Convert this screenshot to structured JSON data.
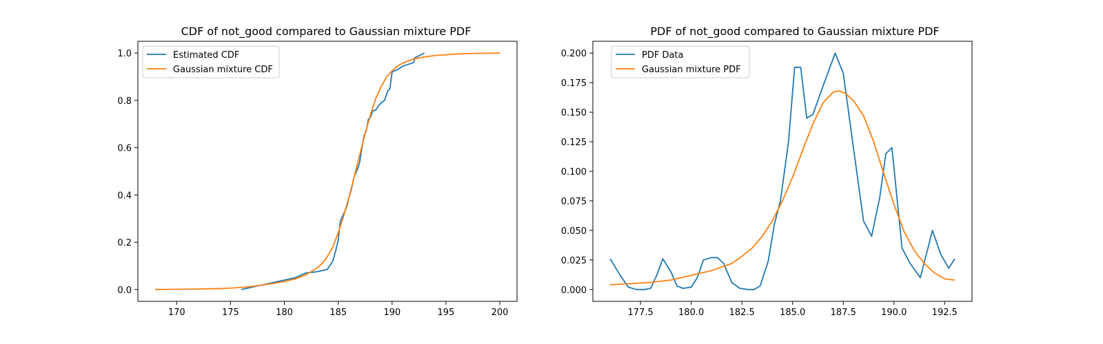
{
  "colors": {
    "series_blue": "#1f77b4",
    "series_orange": "#ff7f0e",
    "axis": "#000000",
    "legend_border": "#cccccc",
    "background": "#ffffff"
  },
  "chart_data": [
    {
      "type": "line",
      "title": "CDF of not_good compared to Gaussian mixture PDF",
      "xlabel": "",
      "ylabel": "",
      "xlim": [
        166.4,
        201.6
      ],
      "ylim": [
        -0.05,
        1.05
      ],
      "xticks": [
        170,
        175,
        180,
        185,
        190,
        195,
        200
      ],
      "xtick_labels": [
        "170",
        "175",
        "180",
        "185",
        "190",
        "195",
        "200"
      ],
      "yticks": [
        0.0,
        0.2,
        0.4,
        0.6,
        0.8,
        1.0
      ],
      "ytick_labels": [
        "0.0",
        "0.2",
        "0.4",
        "0.6",
        "0.8",
        "1.0"
      ],
      "grid": false,
      "legend_position": "upper left",
      "series": [
        {
          "name": "Estimated CDF",
          "color": "#1f77b4",
          "x": [
            176.0,
            177.0,
            178.0,
            179.0,
            180.0,
            181.0,
            181.5,
            182.0,
            183.0,
            184.0,
            184.2,
            184.5,
            184.8,
            185.0,
            185.2,
            185.5,
            185.8,
            186.0,
            186.2,
            186.5,
            186.8,
            187.0,
            187.2,
            187.4,
            187.6,
            187.8,
            188.0,
            188.2,
            188.5,
            188.8,
            189.0,
            189.3,
            189.6,
            189.8,
            190.0,
            190.5,
            191.0,
            192.0,
            192.1,
            193.0
          ],
          "y": [
            0.0,
            0.01,
            0.02,
            0.03,
            0.04,
            0.05,
            0.06,
            0.07,
            0.075,
            0.085,
            0.1,
            0.12,
            0.17,
            0.21,
            0.29,
            0.32,
            0.35,
            0.39,
            0.42,
            0.48,
            0.51,
            0.54,
            0.6,
            0.65,
            0.67,
            0.72,
            0.73,
            0.755,
            0.76,
            0.78,
            0.79,
            0.8,
            0.84,
            0.85,
            0.92,
            0.93,
            0.945,
            0.96,
            0.98,
            1.0
          ]
        },
        {
          "name": "Gaussian mixture CDF",
          "color": "#ff7f0e",
          "x": [
            168.0,
            170.0,
            172.0,
            174.0,
            175.0,
            176.0,
            177.0,
            178.0,
            179.0,
            180.0,
            181.0,
            182.0,
            183.0,
            183.5,
            184.0,
            184.5,
            185.0,
            185.5,
            186.0,
            186.5,
            187.0,
            187.5,
            188.0,
            188.5,
            189.0,
            189.5,
            190.0,
            190.5,
            191.0,
            192.0,
            193.0,
            194.0,
            195.0,
            196.0,
            197.0,
            198.0,
            200.0
          ],
          "y": [
            0.0,
            0.001,
            0.002,
            0.004,
            0.006,
            0.009,
            0.013,
            0.019,
            0.026,
            0.034,
            0.045,
            0.062,
            0.09,
            0.11,
            0.14,
            0.18,
            0.24,
            0.31,
            0.39,
            0.48,
            0.57,
            0.66,
            0.74,
            0.81,
            0.86,
            0.9,
            0.925,
            0.945,
            0.958,
            0.975,
            0.984,
            0.99,
            0.993,
            0.996,
            0.998,
            0.999,
            1.0
          ]
        }
      ]
    },
    {
      "type": "line",
      "title": "PDF of not_good compared to Gaussian mixture PDF",
      "xlabel": "",
      "ylabel": "",
      "xlim": [
        175.15,
        193.85
      ],
      "ylim": [
        -0.01,
        0.21
      ],
      "xticks": [
        177.5,
        180.0,
        182.5,
        185.0,
        187.5,
        190.0,
        192.5
      ],
      "xtick_labels": [
        "177.5",
        "180.0",
        "182.5",
        "185.0",
        "187.5",
        "190.0",
        "192.5"
      ],
      "yticks": [
        0.0,
        0.025,
        0.05,
        0.075,
        0.1,
        0.125,
        0.15,
        0.175,
        0.2
      ],
      "ytick_labels": [
        "0.000",
        "0.025",
        "0.050",
        "0.075",
        "0.100",
        "0.125",
        "0.150",
        "0.175",
        "0.200"
      ],
      "grid": false,
      "legend_position": "upper left",
      "series": [
        {
          "name": "PDF Data",
          "color": "#1f77b4",
          "x": [
            176.0,
            176.5,
            176.9,
            177.3,
            177.7,
            178.0,
            178.3,
            178.6,
            179.0,
            179.3,
            179.6,
            180.0,
            180.3,
            180.6,
            181.0,
            181.3,
            181.6,
            182.0,
            182.4,
            182.8,
            183.1,
            183.4,
            183.8,
            184.1,
            184.4,
            184.8,
            185.1,
            185.4,
            185.7,
            186.0,
            186.5,
            187.1,
            187.5,
            188.0,
            188.5,
            188.9,
            189.3,
            189.6,
            189.9,
            190.4,
            190.8,
            191.3,
            191.9,
            192.3,
            192.7,
            193.0
          ],
          "y": [
            0.026,
            0.012,
            0.002,
            0.0,
            0.0,
            0.001,
            0.012,
            0.026,
            0.015,
            0.003,
            0.001,
            0.002,
            0.01,
            0.025,
            0.027,
            0.027,
            0.022,
            0.006,
            0.001,
            0.0,
            0.0,
            0.003,
            0.024,
            0.055,
            0.075,
            0.125,
            0.188,
            0.188,
            0.145,
            0.148,
            0.172,
            0.2,
            0.183,
            0.12,
            0.058,
            0.045,
            0.078,
            0.115,
            0.12,
            0.035,
            0.022,
            0.01,
            0.05,
            0.03,
            0.018,
            0.026
          ]
        },
        {
          "name": "Gaussian mixture PDF",
          "color": "#ff7f0e",
          "x": [
            176.0,
            176.5,
            177.0,
            177.5,
            178.0,
            178.5,
            179.0,
            179.5,
            180.0,
            180.5,
            181.0,
            181.5,
            182.0,
            182.5,
            183.0,
            183.5,
            184.0,
            184.5,
            185.0,
            185.5,
            186.0,
            186.5,
            187.0,
            187.3,
            187.6,
            188.0,
            188.5,
            189.0,
            189.5,
            190.0,
            190.5,
            191.0,
            191.5,
            192.0,
            192.5,
            193.0
          ],
          "y": [
            0.004,
            0.0045,
            0.005,
            0.0055,
            0.006,
            0.007,
            0.008,
            0.01,
            0.012,
            0.014,
            0.016,
            0.019,
            0.022,
            0.028,
            0.035,
            0.045,
            0.058,
            0.075,
            0.095,
            0.118,
            0.14,
            0.158,
            0.167,
            0.168,
            0.166,
            0.16,
            0.147,
            0.125,
            0.098,
            0.072,
            0.049,
            0.033,
            0.022,
            0.014,
            0.009,
            0.008
          ]
        }
      ]
    }
  ]
}
